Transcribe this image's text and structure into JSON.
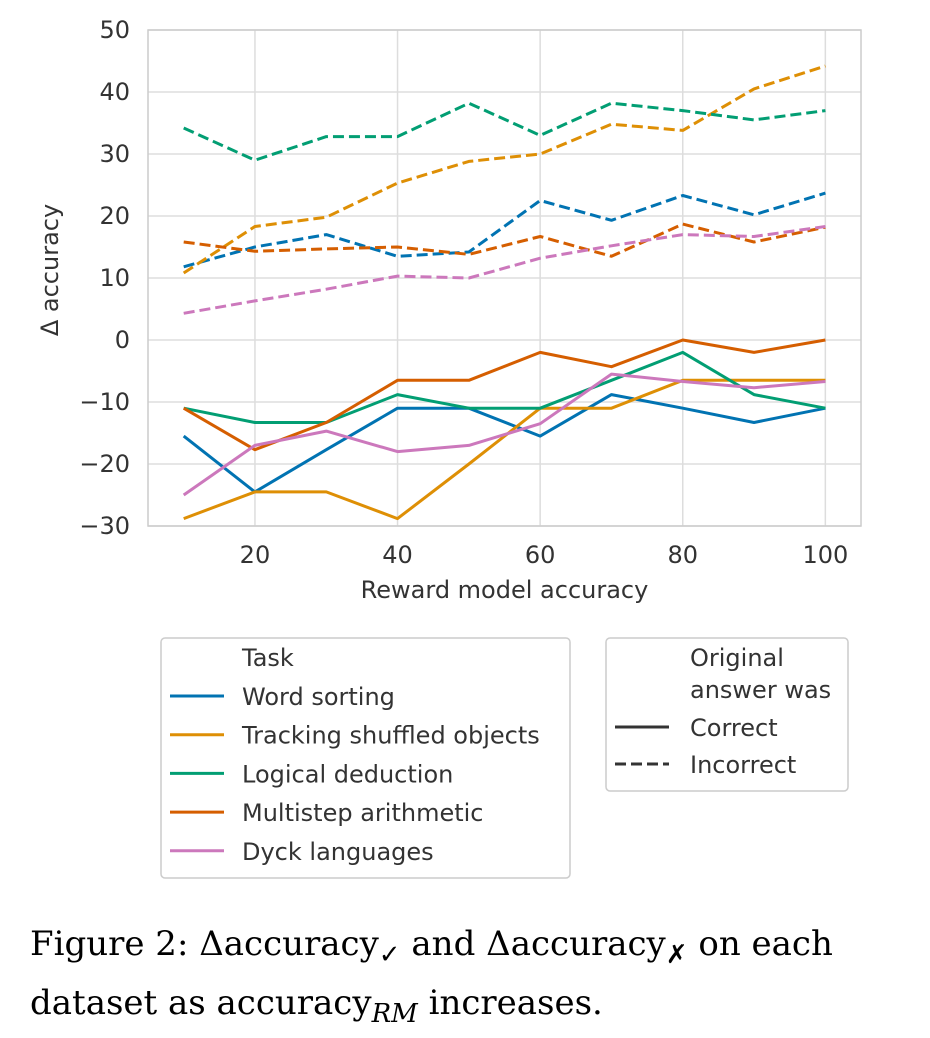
{
  "chart_data": {
    "type": "line",
    "xlabel": "Reward model accuracy",
    "ylabel": "Δ accuracy",
    "xlim": [
      5,
      105
    ],
    "ylim": [
      -30,
      50
    ],
    "x_ticks": [
      20,
      40,
      60,
      80,
      100
    ],
    "y_ticks": [
      -30,
      -20,
      -10,
      0,
      10,
      20,
      30,
      40,
      50
    ],
    "y_tick_labels": [
      "−30",
      "−20",
      "−10",
      "0",
      "10",
      "20",
      "30",
      "40",
      "50"
    ],
    "x": [
      10,
      20,
      30,
      40,
      50,
      60,
      70,
      80,
      90,
      100
    ],
    "grid": true,
    "series": [
      {
        "name": "Word sorting",
        "color": "#0173b2",
        "style": "solid",
        "values": [
          -15.5,
          -24.5,
          -17.7,
          -11.0,
          -11.0,
          -15.5,
          -8.8,
          -11.0,
          -13.3,
          -11.0
        ]
      },
      {
        "name": "Tracking shuffled objects",
        "color": "#de8f05",
        "style": "solid",
        "values": [
          -28.8,
          -24.5,
          -24.5,
          -28.8,
          -20.0,
          -11.0,
          -11.0,
          -6.5,
          -6.5,
          -6.5
        ]
      },
      {
        "name": "Logical deduction",
        "color": "#029e73",
        "style": "solid",
        "values": [
          -11.0,
          -13.3,
          -13.3,
          -8.8,
          -11.0,
          -11.0,
          -6.5,
          -2.0,
          -8.8,
          -11.0
        ]
      },
      {
        "name": "Multistep arithmetic",
        "color": "#d55e00",
        "style": "solid",
        "values": [
          -11.0,
          -17.7,
          -13.3,
          -6.5,
          -6.5,
          -2.0,
          -4.3,
          0.0,
          -2.0,
          0.0
        ]
      },
      {
        "name": "Dyck languages",
        "color": "#cc78bc",
        "style": "solid",
        "values": [
          -25.0,
          -17.0,
          -14.7,
          -18.0,
          -17.0,
          -13.5,
          -5.5,
          -6.7,
          -7.7,
          -6.7
        ]
      },
      {
        "name": "Word sorting",
        "color": "#0173b2",
        "style": "dashed",
        "values": [
          11.8,
          15.0,
          17.0,
          13.5,
          14.2,
          22.5,
          19.3,
          23.3,
          20.2,
          23.7
        ]
      },
      {
        "name": "Tracking shuffled objects",
        "color": "#de8f05",
        "style": "dashed",
        "values": [
          10.8,
          18.3,
          19.8,
          25.3,
          28.8,
          30.0,
          34.8,
          33.8,
          40.5,
          44.2
        ]
      },
      {
        "name": "Logical deduction",
        "color": "#029e73",
        "style": "dashed",
        "values": [
          34.2,
          29.0,
          32.8,
          32.8,
          38.2,
          33.0,
          38.2,
          37.0,
          35.5,
          37.0
        ]
      },
      {
        "name": "Multistep arithmetic",
        "color": "#d55e00",
        "style": "dashed",
        "values": [
          15.8,
          14.3,
          14.7,
          15.0,
          13.8,
          16.7,
          13.5,
          18.7,
          15.8,
          18.2
        ]
      },
      {
        "name": "Dyck languages",
        "color": "#cc78bc",
        "style": "dashed",
        "values": [
          4.3,
          6.3,
          8.2,
          10.3,
          10.0,
          13.2,
          15.2,
          17.0,
          16.7,
          18.3
        ]
      }
    ]
  },
  "legend_task": {
    "title": "Task",
    "items": [
      {
        "label": "Word sorting",
        "color": "#0173b2"
      },
      {
        "label": "Tracking shuffled objects",
        "color": "#de8f05"
      },
      {
        "label": "Logical deduction",
        "color": "#029e73"
      },
      {
        "label": "Multistep arithmetic",
        "color": "#d55e00"
      },
      {
        "label": "Dyck languages",
        "color": "#cc78bc"
      }
    ]
  },
  "legend_answer": {
    "title_line1": "Original",
    "title_line2": "answer was",
    "items": [
      {
        "label": "Correct",
        "style": "solid"
      },
      {
        "label": "Incorrect",
        "style": "dashed"
      }
    ]
  },
  "caption": {
    "prefix": "Figure 2: ",
    "delta1": "Δaccuracy",
    "check": "✓",
    "and": " and ",
    "delta2": "Δaccuracy",
    "cross": "✗",
    "middle": " on each dataset as accuracy",
    "rm": "RM",
    "suffix": " increases."
  }
}
